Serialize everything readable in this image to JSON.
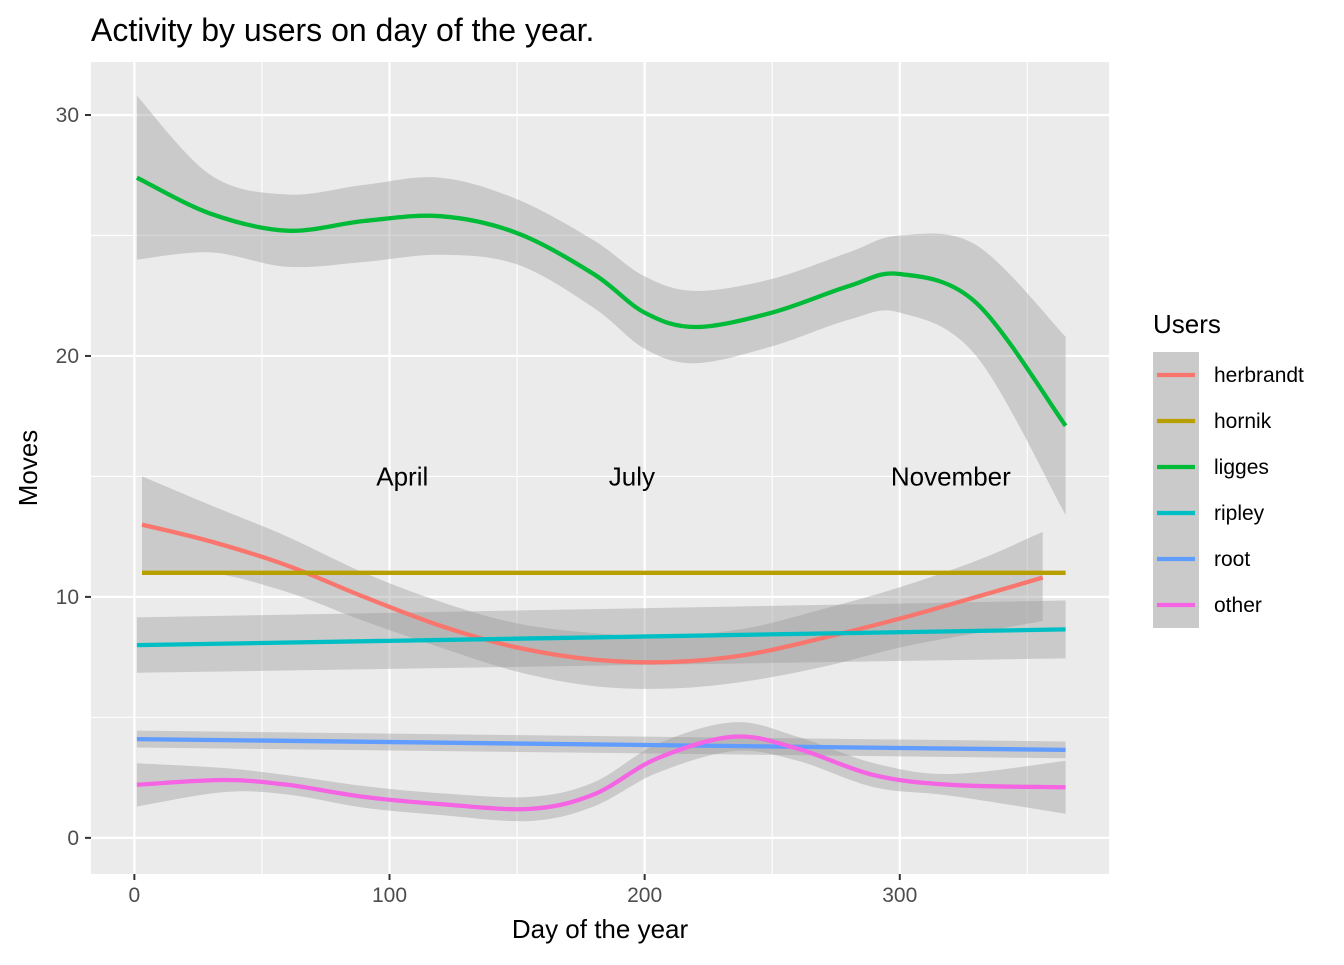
{
  "chart_data": {
    "type": "line",
    "title": "Activity by users on day of the year.",
    "xlabel": "Day of the year",
    "ylabel": "Moves",
    "xlim": [
      -17,
      382
    ],
    "ylim": [
      -1.5,
      32.2
    ],
    "x_ticks": [
      0,
      100,
      200,
      300
    ],
    "x_minor_ticks": [
      50,
      150,
      250,
      350
    ],
    "y_ticks": [
      0,
      10,
      20,
      30
    ],
    "y_minor_ticks": [
      5,
      15,
      25
    ],
    "grid": true,
    "legend": {
      "title": "Users",
      "position": "right"
    },
    "annotations": [
      {
        "text": "April",
        "x": 105,
        "y": 15
      },
      {
        "text": "July",
        "x": 195,
        "y": 15
      },
      {
        "text": "November",
        "x": 320,
        "y": 15
      }
    ],
    "series": [
      {
        "name": "herbrandt",
        "color": "#F8766D",
        "x": [
          3,
          30,
          60,
          90,
          120,
          150,
          180,
          210,
          240,
          270,
          300,
          330,
          356
        ],
        "values": [
          13.0,
          12.3,
          11.3,
          10.0,
          8.8,
          7.9,
          7.4,
          7.3,
          7.6,
          8.3,
          9.1,
          10.0,
          10.8
        ],
        "lower": [
          11.0,
          11.0,
          10.2,
          9.0,
          7.9,
          6.9,
          6.3,
          6.2,
          6.5,
          7.1,
          7.9,
          8.5,
          9.0
        ],
        "upper": [
          15.0,
          13.8,
          12.5,
          11.0,
          9.8,
          8.9,
          8.5,
          8.4,
          8.7,
          9.5,
          10.4,
          11.5,
          12.7
        ]
      },
      {
        "name": "hornik",
        "color": "#B79F00",
        "x": [
          3,
          365
        ],
        "values": [
          11.0,
          11.0
        ]
      },
      {
        "name": "ligges",
        "color": "#00BA38",
        "x": [
          1,
          30,
          60,
          90,
          120,
          150,
          180,
          200,
          220,
          250,
          280,
          300,
          330,
          365
        ],
        "values": [
          27.4,
          25.9,
          25.2,
          25.6,
          25.8,
          25.1,
          23.4,
          21.8,
          21.2,
          21.8,
          22.9,
          23.4,
          22.2,
          17.1
        ],
        "lower": [
          24.0,
          24.3,
          23.7,
          23.9,
          24.2,
          23.8,
          22.0,
          20.3,
          19.7,
          20.4,
          21.5,
          21.8,
          20.0,
          13.4
        ],
        "upper": [
          30.8,
          27.5,
          26.7,
          27.1,
          27.4,
          26.5,
          24.8,
          23.3,
          22.7,
          23.2,
          24.3,
          25.0,
          24.6,
          20.8
        ]
      },
      {
        "name": "ripley",
        "color": "#00BFC4",
        "x": [
          1,
          365
        ],
        "values": [
          8.0,
          8.65
        ],
        "lower": [
          6.85,
          7.45
        ],
        "upper": [
          9.15,
          9.85
        ]
      },
      {
        "name": "root",
        "color": "#619CFF",
        "x": [
          1,
          365
        ],
        "values": [
          4.1,
          3.65
        ],
        "lower": [
          3.75,
          3.3
        ],
        "upper": [
          4.45,
          4.0
        ]
      },
      {
        "name": "other",
        "color": "#F564E3",
        "x": [
          1,
          35,
          60,
          90,
          120,
          155,
          180,
          205,
          235,
          260,
          290,
          320,
          365
        ],
        "values": [
          2.2,
          2.4,
          2.2,
          1.7,
          1.4,
          1.2,
          1.8,
          3.3,
          4.2,
          3.7,
          2.6,
          2.2,
          2.1
        ],
        "lower": [
          1.3,
          1.9,
          1.8,
          1.25,
          0.95,
          0.7,
          1.3,
          2.7,
          3.6,
          3.2,
          2.1,
          1.75,
          1.0
        ],
        "upper": [
          3.1,
          2.9,
          2.6,
          2.15,
          1.85,
          1.7,
          2.3,
          3.9,
          4.8,
          4.2,
          3.1,
          2.65,
          3.2
        ]
      }
    ]
  }
}
